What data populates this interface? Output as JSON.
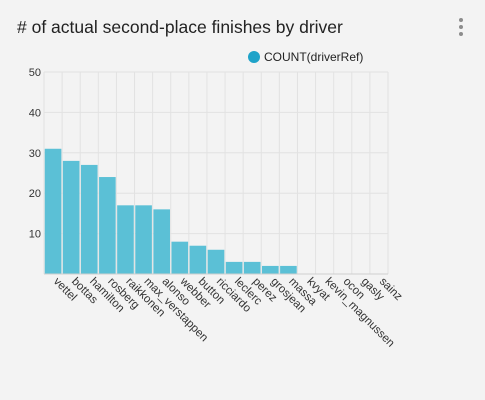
{
  "title": "# of actual second-place finishes by driver",
  "menu_icon": "more-vertical-icon",
  "colors": {
    "bar": "#5bc0d6",
    "legend": "#1fa3c9",
    "grid": "#e2e2e2"
  },
  "chart_data": {
    "type": "bar",
    "title": "# of actual second-place finishes by driver",
    "categories": [
      "vettel",
      "bottas",
      "hamilton",
      "rosberg",
      "raikkonen",
      "max_verstappen",
      "alonso",
      "webber",
      "button",
      "ricciardo",
      "leclerc",
      "perez",
      "grosjean",
      "massa",
      "kvyat",
      "kevin_magnussen",
      "ocon",
      "gasly",
      "sainz"
    ],
    "series": [
      {
        "name": "COUNT(driverRef)",
        "values": [
          31,
          28,
          27,
          24,
          17,
          17,
          16,
          8,
          7,
          6,
          3,
          3,
          2,
          2,
          0,
          0,
          0,
          0,
          0
        ]
      }
    ],
    "ylim": [
      0,
      50
    ],
    "yticks": [
      50,
      40,
      30,
      20,
      10
    ],
    "grid": true,
    "legend": "top-right"
  }
}
